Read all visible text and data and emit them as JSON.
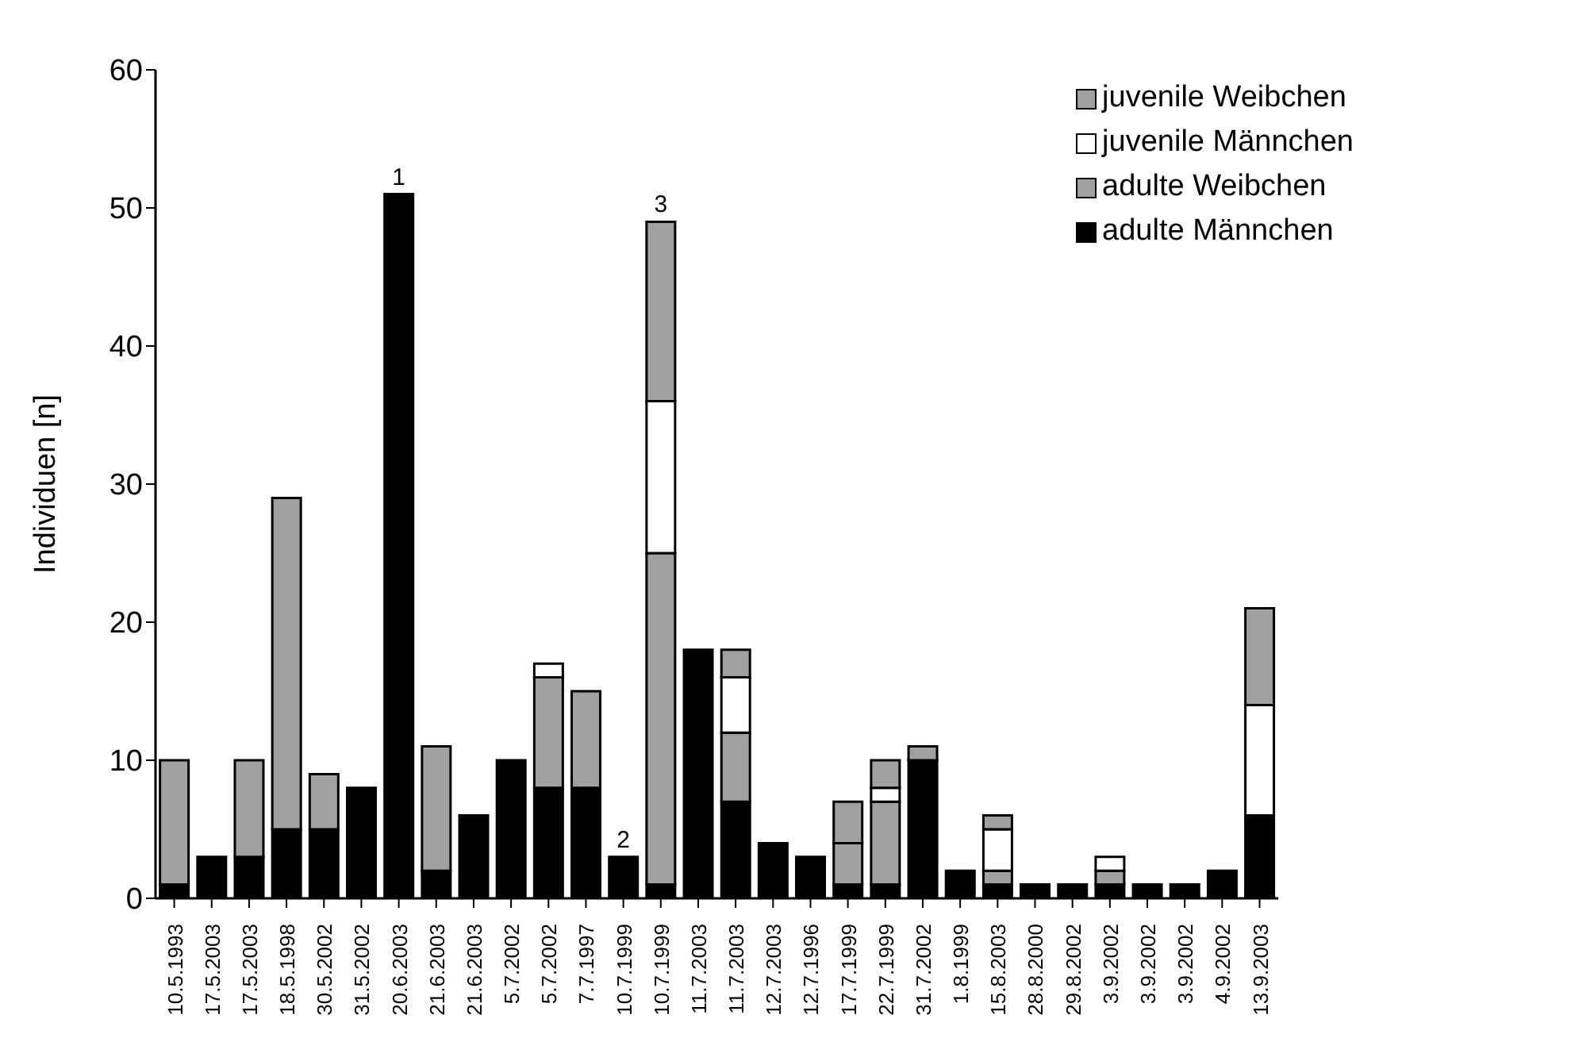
{
  "chart_data": {
    "type": "bar",
    "stacked": true,
    "ylabel": "Individuen [n]",
    "categories": [
      "10.5.1993",
      "17.5.2003",
      "17.5.2003",
      "18.5.1998",
      "30.5.2002",
      "31.5.2002",
      "20.6.2003",
      "21.6.2003",
      "21.6.2003",
      "5.7.2002",
      "5.7.2002",
      "7.7.1997",
      "10.7.1999",
      "10.7.1999",
      "11.7.2003",
      "11.7.2003",
      "12.7.2003",
      "12.7.1996",
      "17.7.1999",
      "22.7.1999",
      "31.7.2002",
      "1.8.1999",
      "15.8.2003",
      "28.8.2000",
      "29.8.2002",
      "3.9.2002",
      "3.9.2002",
      "3.9.2002",
      "4.9.2002",
      "13.9.2003"
    ],
    "series": [
      {
        "name": "adulte Männchen",
        "color": "#000000",
        "values": [
          1,
          3,
          3,
          5,
          5,
          8,
          51,
          2,
          6,
          10,
          8,
          8,
          3,
          1,
          18,
          7,
          4,
          3,
          1,
          1,
          10,
          2,
          1,
          1,
          1,
          1,
          1,
          1,
          2,
          6
        ]
      },
      {
        "name": "adulte Weibchen",
        "color": "#a0a0a0",
        "values": [
          9,
          0,
          7,
          24,
          4,
          0,
          0,
          9,
          0,
          0,
          8,
          7,
          0,
          24,
          0,
          5,
          0,
          0,
          3,
          6,
          1,
          0,
          1,
          0,
          0,
          1,
          0,
          0,
          0,
          0
        ]
      },
      {
        "name": "juvenile Männchen",
        "color": "#ffffff",
        "values": [
          0,
          0,
          0,
          0,
          0,
          0,
          0,
          0,
          0,
          0,
          1,
          0,
          0,
          11,
          0,
          4,
          0,
          0,
          0,
          1,
          0,
          0,
          3,
          0,
          0,
          1,
          0,
          0,
          0,
          8
        ]
      },
      {
        "name": "juvenile Weibchen",
        "color": "#a0a0a0",
        "values": [
          0,
          0,
          0,
          0,
          0,
          0,
          0,
          0,
          0,
          0,
          0,
          0,
          0,
          13,
          0,
          2,
          0,
          0,
          3,
          2,
          0,
          0,
          1,
          0,
          0,
          0,
          0,
          0,
          0,
          7
        ]
      }
    ],
    "ylim": [
      0,
      60
    ],
    "yticks": [
      0,
      10,
      20,
      30,
      40,
      50,
      60
    ],
    "legend": "top right",
    "annotations": [
      {
        "text": "1",
        "x": "20.6.2003",
        "y": 51
      },
      {
        "text": "2",
        "x": "10.7.1999",
        "y": 3
      },
      {
        "text": "3",
        "y": 49
      }
    ]
  }
}
